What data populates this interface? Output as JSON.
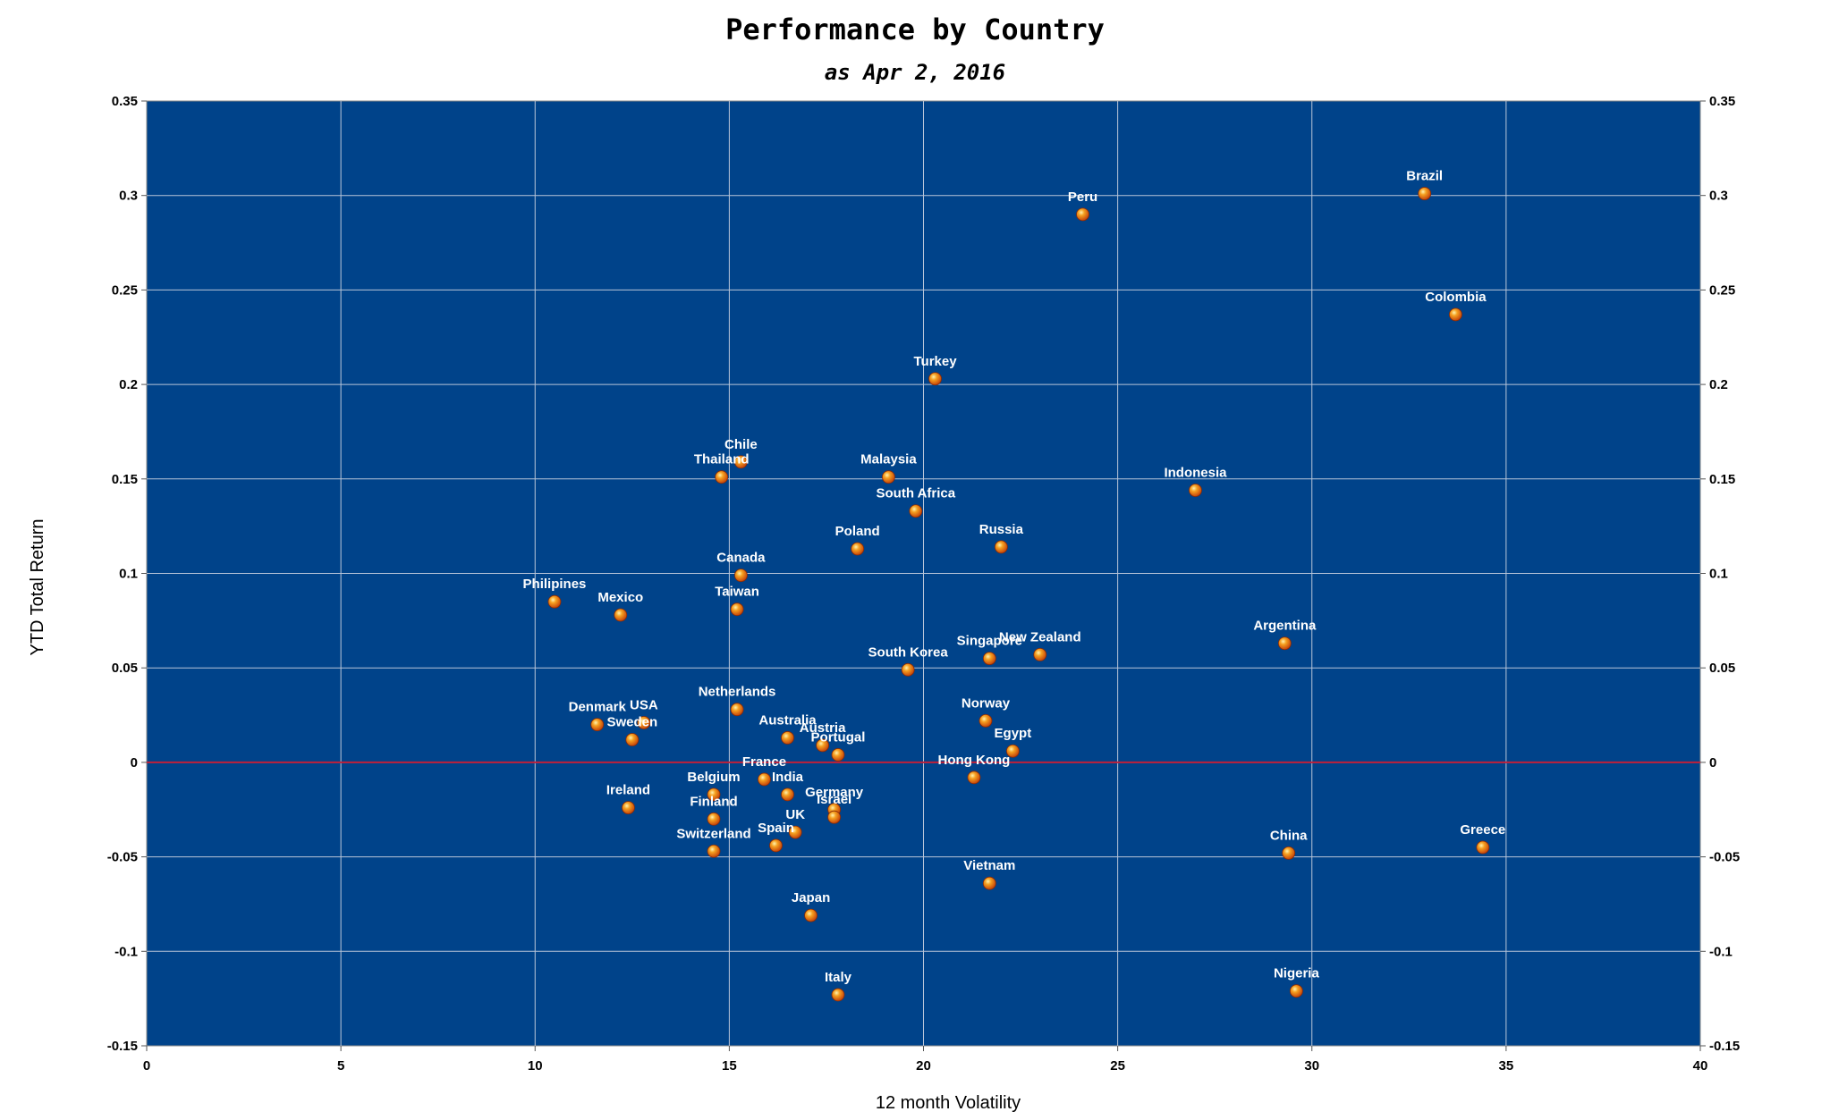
{
  "chart_data": {
    "type": "scatter",
    "title": "Performance by Country",
    "subtitle": "as Apr 2, 2016",
    "xlabel": "12 month Volatility",
    "ylabel": "YTD Total Return",
    "xlim": [
      0,
      40
    ],
    "ylim": [
      -0.15,
      0.35
    ],
    "x_ticks": [
      "0",
      "5",
      "10",
      "15",
      "20",
      "25",
      "30",
      "35",
      "40"
    ],
    "y_ticks": [
      "0.35",
      "0.3",
      "0.25",
      "0.2",
      "0.15",
      "0.1",
      "0.05",
      "0",
      "-0.05",
      "-0.1",
      "-0.15"
    ],
    "grid": true,
    "plot_background": "#00438a",
    "grid_color": "#b8c4d8",
    "zero_line_color": "#c0203a",
    "marker_color": "#f07818",
    "points": [
      {
        "label": "Brazil",
        "x": 32.9,
        "y": 0.301
      },
      {
        "label": "Peru",
        "x": 24.1,
        "y": 0.29
      },
      {
        "label": "Colombia",
        "x": 33.7,
        "y": 0.237
      },
      {
        "label": "Turkey",
        "x": 20.3,
        "y": 0.203
      },
      {
        "label": "Chile",
        "x": 15.3,
        "y": 0.159
      },
      {
        "label": "Thailand",
        "x": 14.8,
        "y": 0.151
      },
      {
        "label": "Malaysia",
        "x": 19.1,
        "y": 0.151
      },
      {
        "label": "Indonesia",
        "x": 27.0,
        "y": 0.144
      },
      {
        "label": "South Africa",
        "x": 19.8,
        "y": 0.133
      },
      {
        "label": "Poland",
        "x": 18.3,
        "y": 0.113
      },
      {
        "label": "Russia",
        "x": 22.0,
        "y": 0.114
      },
      {
        "label": "Canada",
        "x": 15.3,
        "y": 0.099
      },
      {
        "label": "Philipines",
        "x": 10.5,
        "y": 0.085
      },
      {
        "label": "Mexico",
        "x": 12.2,
        "y": 0.078
      },
      {
        "label": "Taiwan",
        "x": 15.2,
        "y": 0.081
      },
      {
        "label": "Argentina",
        "x": 29.3,
        "y": 0.063
      },
      {
        "label": "New Zealand",
        "x": 23.0,
        "y": 0.057
      },
      {
        "label": "Singapore",
        "x": 21.7,
        "y": 0.055
      },
      {
        "label": "South Korea",
        "x": 19.6,
        "y": 0.049
      },
      {
        "label": "Netherlands",
        "x": 15.2,
        "y": 0.028
      },
      {
        "label": "Denmark",
        "x": 11.6,
        "y": 0.02
      },
      {
        "label": "USA",
        "x": 12.8,
        "y": 0.021
      },
      {
        "label": "Sweden",
        "x": 12.5,
        "y": 0.012
      },
      {
        "label": "Norway",
        "x": 21.6,
        "y": 0.022
      },
      {
        "label": "Australia",
        "x": 16.5,
        "y": 0.013
      },
      {
        "label": "Austria",
        "x": 17.4,
        "y": 0.009
      },
      {
        "label": "Portugal",
        "x": 17.8,
        "y": 0.004
      },
      {
        "label": "Egypt",
        "x": 22.3,
        "y": 0.006
      },
      {
        "label": "Hong Kong",
        "x": 21.3,
        "y": -0.008
      },
      {
        "label": "France",
        "x": 15.9,
        "y": -0.009
      },
      {
        "label": "Belgium",
        "x": 14.6,
        "y": -0.017
      },
      {
        "label": "India",
        "x": 16.5,
        "y": -0.017
      },
      {
        "label": "Germany",
        "x": 17.7,
        "y": -0.025
      },
      {
        "label": "Israel",
        "x": 17.7,
        "y": -0.029
      },
      {
        "label": "Ireland",
        "x": 12.4,
        "y": -0.024
      },
      {
        "label": "Finland",
        "x": 14.6,
        "y": -0.03
      },
      {
        "label": "UK",
        "x": 16.7,
        "y": -0.037
      },
      {
        "label": "Spain",
        "x": 16.2,
        "y": -0.044
      },
      {
        "label": "Switzerland",
        "x": 14.6,
        "y": -0.047
      },
      {
        "label": "China",
        "x": 29.4,
        "y": -0.048
      },
      {
        "label": "Greece",
        "x": 34.4,
        "y": -0.045
      },
      {
        "label": "Vietnam",
        "x": 21.7,
        "y": -0.064
      },
      {
        "label": "Japan",
        "x": 17.1,
        "y": -0.081
      },
      {
        "label": "Italy",
        "x": 17.8,
        "y": -0.123
      },
      {
        "label": "Nigeria",
        "x": 29.6,
        "y": -0.121
      }
    ]
  }
}
